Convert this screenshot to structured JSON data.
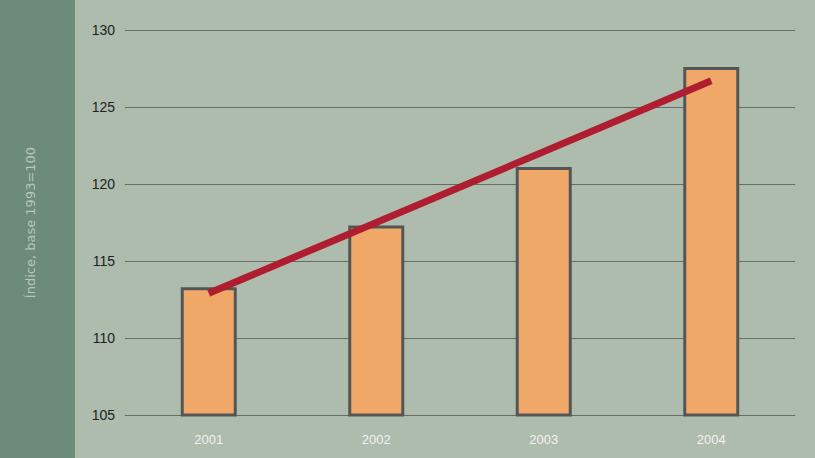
{
  "chart_data": {
    "type": "bar",
    "y_label": "Índice, base 1993=100",
    "categories": [
      "2001",
      "2002",
      "2003",
      "2004"
    ],
    "series": [
      {
        "type": "bar",
        "color": "#f0a868",
        "values": [
          113.3,
          117.3,
          121.1,
          127.6
        ]
      },
      {
        "type": "line",
        "color": "#b01c30",
        "values": [
          112.9,
          null,
          null,
          126.7
        ]
      }
    ],
    "ylim": [
      105,
      130
    ],
    "yticks": [
      105,
      110,
      115,
      120,
      125,
      130
    ],
    "grid": true
  }
}
